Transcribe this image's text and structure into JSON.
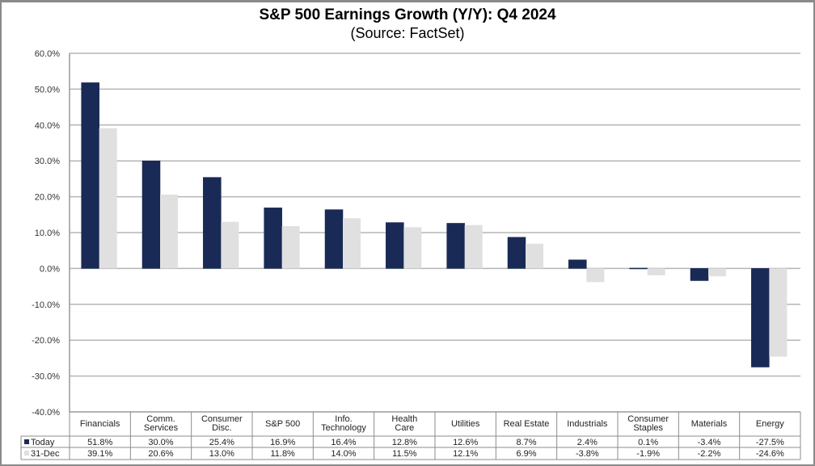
{
  "chart_data": {
    "type": "bar",
    "title": "S&P 500 Earnings Growth (Y/Y): Q4 2024",
    "subtitle": "(Source: FactSet)",
    "xlabel": "",
    "ylabel": "",
    "ylim": [
      -40,
      60
    ],
    "yticks": [
      60,
      50,
      40,
      30,
      20,
      10,
      0,
      -10,
      -20,
      -30,
      -40
    ],
    "ytick_labels": [
      "60.0%",
      "50.0%",
      "40.0%",
      "30.0%",
      "20.0%",
      "10.0%",
      "0.0%",
      "-10.0%",
      "-20.0%",
      "-30.0%",
      "-40.0%"
    ],
    "grid": true,
    "legend": "data-table-bottom",
    "categories": [
      [
        "Financials"
      ],
      [
        "Comm.",
        "Services"
      ],
      [
        "Consumer",
        "Disc."
      ],
      [
        "S&P 500"
      ],
      [
        "Info.",
        "Technology"
      ],
      [
        "Health",
        "Care"
      ],
      [
        "Utilities"
      ],
      [
        "Real Estate"
      ],
      [
        "Industrials"
      ],
      [
        "Consumer",
        "Staples"
      ],
      [
        "Materials"
      ],
      [
        "Energy"
      ]
    ],
    "series": [
      {
        "name": "Today",
        "color": "#1a2a57",
        "values": [
          51.8,
          30.0,
          25.4,
          16.9,
          16.4,
          12.8,
          12.6,
          8.7,
          2.4,
          0.1,
          -3.4,
          -27.5
        ],
        "labels": [
          "51.8%",
          "30.0%",
          "25.4%",
          "16.9%",
          "16.4%",
          "12.8%",
          "12.6%",
          "8.7%",
          "2.4%",
          "0.1%",
          "-3.4%",
          "-27.5%"
        ]
      },
      {
        "name": "31-Dec",
        "color": "#e0e0e0",
        "values": [
          39.1,
          20.6,
          13.0,
          11.8,
          14.0,
          11.5,
          12.1,
          6.9,
          -3.8,
          -1.9,
          -2.2,
          -24.6
        ],
        "labels": [
          "39.1%",
          "20.6%",
          "13.0%",
          "11.8%",
          "14.0%",
          "11.5%",
          "12.1%",
          "6.9%",
          "-3.8%",
          "-1.9%",
          "-2.2%",
          "-24.6%"
        ]
      }
    ]
  }
}
